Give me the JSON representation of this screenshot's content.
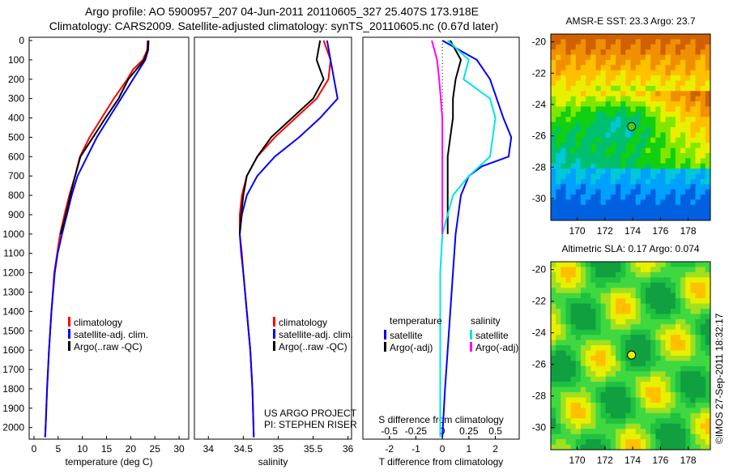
{
  "title_line1": "Argo profile: AO 5900957_207 04-Jun-2011 20110605_327 25.407S 173.918E",
  "title_line2": "Climatology: CARS2009. Satellite-adjusted climatology: synTS_20110605.nc (0.67d later)",
  "credit": "©IMOS 27-Sep-2011 18:32:17",
  "colors": {
    "climatology": "#ff0000",
    "satellite": "#0000ff",
    "argo": "#000000",
    "s_satellite": "#00e5e5",
    "s_argo": "#ff00ff"
  },
  "chart_data": [
    {
      "type": "line",
      "xlabel": "temperature (deg C)",
      "xlim": [
        -1,
        32
      ],
      "ylim": [
        0,
        2060
      ],
      "xticks": [
        0,
        5,
        10,
        15,
        20,
        25,
        30
      ],
      "yticks": [
        0,
        100,
        200,
        300,
        400,
        500,
        600,
        700,
        800,
        900,
        1000,
        1100,
        1200,
        1300,
        1400,
        1500,
        1600,
        1700,
        1800,
        1900,
        2000
      ],
      "legend": [
        "climatology",
        "satellite-adj. clim.",
        "Argo(..raw -QC)"
      ],
      "series": [
        {
          "name": "climatology",
          "color": "#ff0000",
          "depth": [
            0,
            50,
            100,
            150,
            200,
            300,
            400,
            500,
            600,
            700,
            800,
            900,
            1000,
            1100,
            1200,
            1400,
            1600,
            1800,
            2000,
            2050
          ],
          "values": [
            23.5,
            23.4,
            22.5,
            20.5,
            19.3,
            16.5,
            14,
            11.5,
            9.5,
            8.5,
            7.3,
            6.3,
            5.4,
            4.8,
            4.2,
            3.6,
            3.1,
            2.7,
            2.4,
            2.3
          ]
        },
        {
          "name": "satellite-adj. clim.",
          "color": "#0000ff",
          "depth": [
            0,
            50,
            100,
            200,
            300,
            400,
            500,
            600,
            700,
            800,
            900,
            1000,
            1100,
            1200,
            1400,
            1600,
            1800,
            2000,
            2050
          ],
          "values": [
            23.7,
            23.6,
            23,
            20.5,
            18,
            15.5,
            13,
            11,
            9,
            7.8,
            6.8,
            5.8,
            4.9,
            4.3,
            3.6,
            3.1,
            2.7,
            2.4,
            2.3
          ]
        },
        {
          "name": "Argo(..raw -QC)",
          "color": "#000000",
          "depth": [
            0,
            50,
            100,
            200,
            300,
            400,
            500,
            600,
            700,
            800,
            900,
            1000
          ],
          "values": [
            23.6,
            23.5,
            22.8,
            19.5,
            17.5,
            14.8,
            12.2,
            9.6,
            8.5,
            7.5,
            6.6,
            5.5
          ]
        }
      ]
    },
    {
      "type": "line",
      "xlabel": "salinity",
      "xlim": [
        33.8,
        36.05
      ],
      "ylim": [
        0,
        2060
      ],
      "xticks": [
        34,
        34.5,
        35,
        35.5,
        36
      ],
      "xticklabels": [
        "34",
        "34.5",
        "35",
        "35.5",
        "36"
      ],
      "legend": [
        "climatology",
        "satellite-adj. clim.",
        "Argo(..raw -QC)"
      ],
      "annotation": [
        "US ARGO PROJECT",
        "PI: STEPHEN RISER"
      ],
      "series": [
        {
          "name": "climatology",
          "color": "#ff0000",
          "depth": [
            0,
            100,
            200,
            300,
            400,
            500,
            600,
            700,
            800,
            900,
            1000,
            1100,
            1200,
            1400,
            1600,
            1800,
            2050
          ],
          "values": [
            35.65,
            35.75,
            35.72,
            35.55,
            35.25,
            34.95,
            34.7,
            34.55,
            34.48,
            34.45,
            34.45,
            34.48,
            34.5,
            34.55,
            34.6,
            34.63,
            34.65
          ]
        },
        {
          "name": "satellite-adj. clim.",
          "color": "#0000ff",
          "depth": [
            0,
            100,
            200,
            300,
            400,
            500,
            600,
            700,
            800,
            900,
            1000,
            1100,
            1200,
            1400,
            1600,
            1800,
            2050
          ],
          "values": [
            35.7,
            35.75,
            35.8,
            35.85,
            35.6,
            35.3,
            34.95,
            34.7,
            34.55,
            34.48,
            34.45,
            34.47,
            34.5,
            34.55,
            34.6,
            34.63,
            34.65
          ]
        },
        {
          "name": "Argo(..raw -QC)",
          "color": "#000000",
          "depth": [
            0,
            100,
            200,
            300,
            400,
            500,
            600,
            700,
            800,
            900,
            1000
          ],
          "values": [
            35.6,
            35.55,
            35.65,
            35.5,
            35.2,
            34.9,
            34.7,
            34.55,
            34.5,
            34.47,
            34.45
          ]
        }
      ]
    },
    {
      "type": "line",
      "xlabel": "T difference from climatology",
      "xlabel2": "S difference from climatology",
      "xlim": [
        -3,
        2.9
      ],
      "ylim": [
        0,
        2060
      ],
      "xticks": [
        -2,
        -1,
        0,
        1,
        2
      ],
      "xticks2": [
        -0.5,
        -0.25,
        0,
        0.25,
        0.5
      ],
      "xticklabels2": [
        "-0.5",
        "-0.25",
        "0",
        "0.25",
        "0.5"
      ],
      "legend_headers": [
        "temperature",
        "salinity"
      ],
      "legend": [
        "satellite",
        "Argo(-adj)",
        "satellite",
        "Argo(-adj)"
      ],
      "series": [
        {
          "name": "T satellite",
          "axis": "T",
          "color": "#0000ff",
          "depth": [
            0,
            100,
            200,
            400,
            500,
            600,
            650,
            700,
            800,
            1000,
            1200,
            1600,
            1800,
            2050
          ],
          "values": [
            0,
            1.3,
            1.8,
            2.3,
            2.6,
            2.5,
            1.5,
            1.0,
            0.7,
            0.5,
            0.4,
            0.2,
            0.1,
            0
          ]
        },
        {
          "name": "T Argo(-adj)",
          "axis": "T",
          "color": "#000000",
          "depth": [
            0,
            100,
            200,
            300,
            400,
            500,
            600,
            800,
            1000
          ],
          "values": [
            0.3,
            0.7,
            0.5,
            0.4,
            0.4,
            0.3,
            0.2,
            0.2,
            0.2
          ]
        },
        {
          "name": "S satellite",
          "axis": "S",
          "color": "#00e5e5",
          "depth": [
            0,
            100,
            200,
            300,
            400,
            600,
            700,
            800,
            1000,
            1200,
            2050
          ],
          "values": [
            0.05,
            0.25,
            0.2,
            0.45,
            0.5,
            0.45,
            0.25,
            0.1,
            0,
            -0.02,
            -0.02
          ]
        },
        {
          "name": "S Argo(-adj)",
          "axis": "S",
          "color": "#ff00ff",
          "depth": [
            0,
            100,
            200,
            400,
            600,
            800,
            1000
          ],
          "values": [
            -0.1,
            -0.05,
            -0.03,
            0,
            0,
            0,
            0
          ]
        }
      ]
    },
    {
      "type": "heatmap",
      "title": "AMSR-E SST: 23.3 Argo: 23.7",
      "xlim": [
        168.1,
        179.6
      ],
      "ylim": [
        -31.4,
        -19.5
      ],
      "xticks": [
        170,
        172,
        174,
        176,
        178
      ],
      "yticks": [
        -20,
        -22,
        -24,
        -26,
        -28,
        -30
      ],
      "marker": {
        "lon": 173.918,
        "lat": -25.407
      }
    },
    {
      "type": "heatmap",
      "title": "Altimetric SLA: 0.17 Argo: 0.074",
      "xlim": [
        168.1,
        179.6
      ],
      "ylim": [
        -31.4,
        -19.5
      ],
      "xticks": [
        170,
        172,
        174,
        176,
        178
      ],
      "yticks": [
        -20,
        -22,
        -24,
        -26,
        -28,
        -30
      ],
      "marker": {
        "lon": 173.918,
        "lat": -25.407
      }
    }
  ]
}
